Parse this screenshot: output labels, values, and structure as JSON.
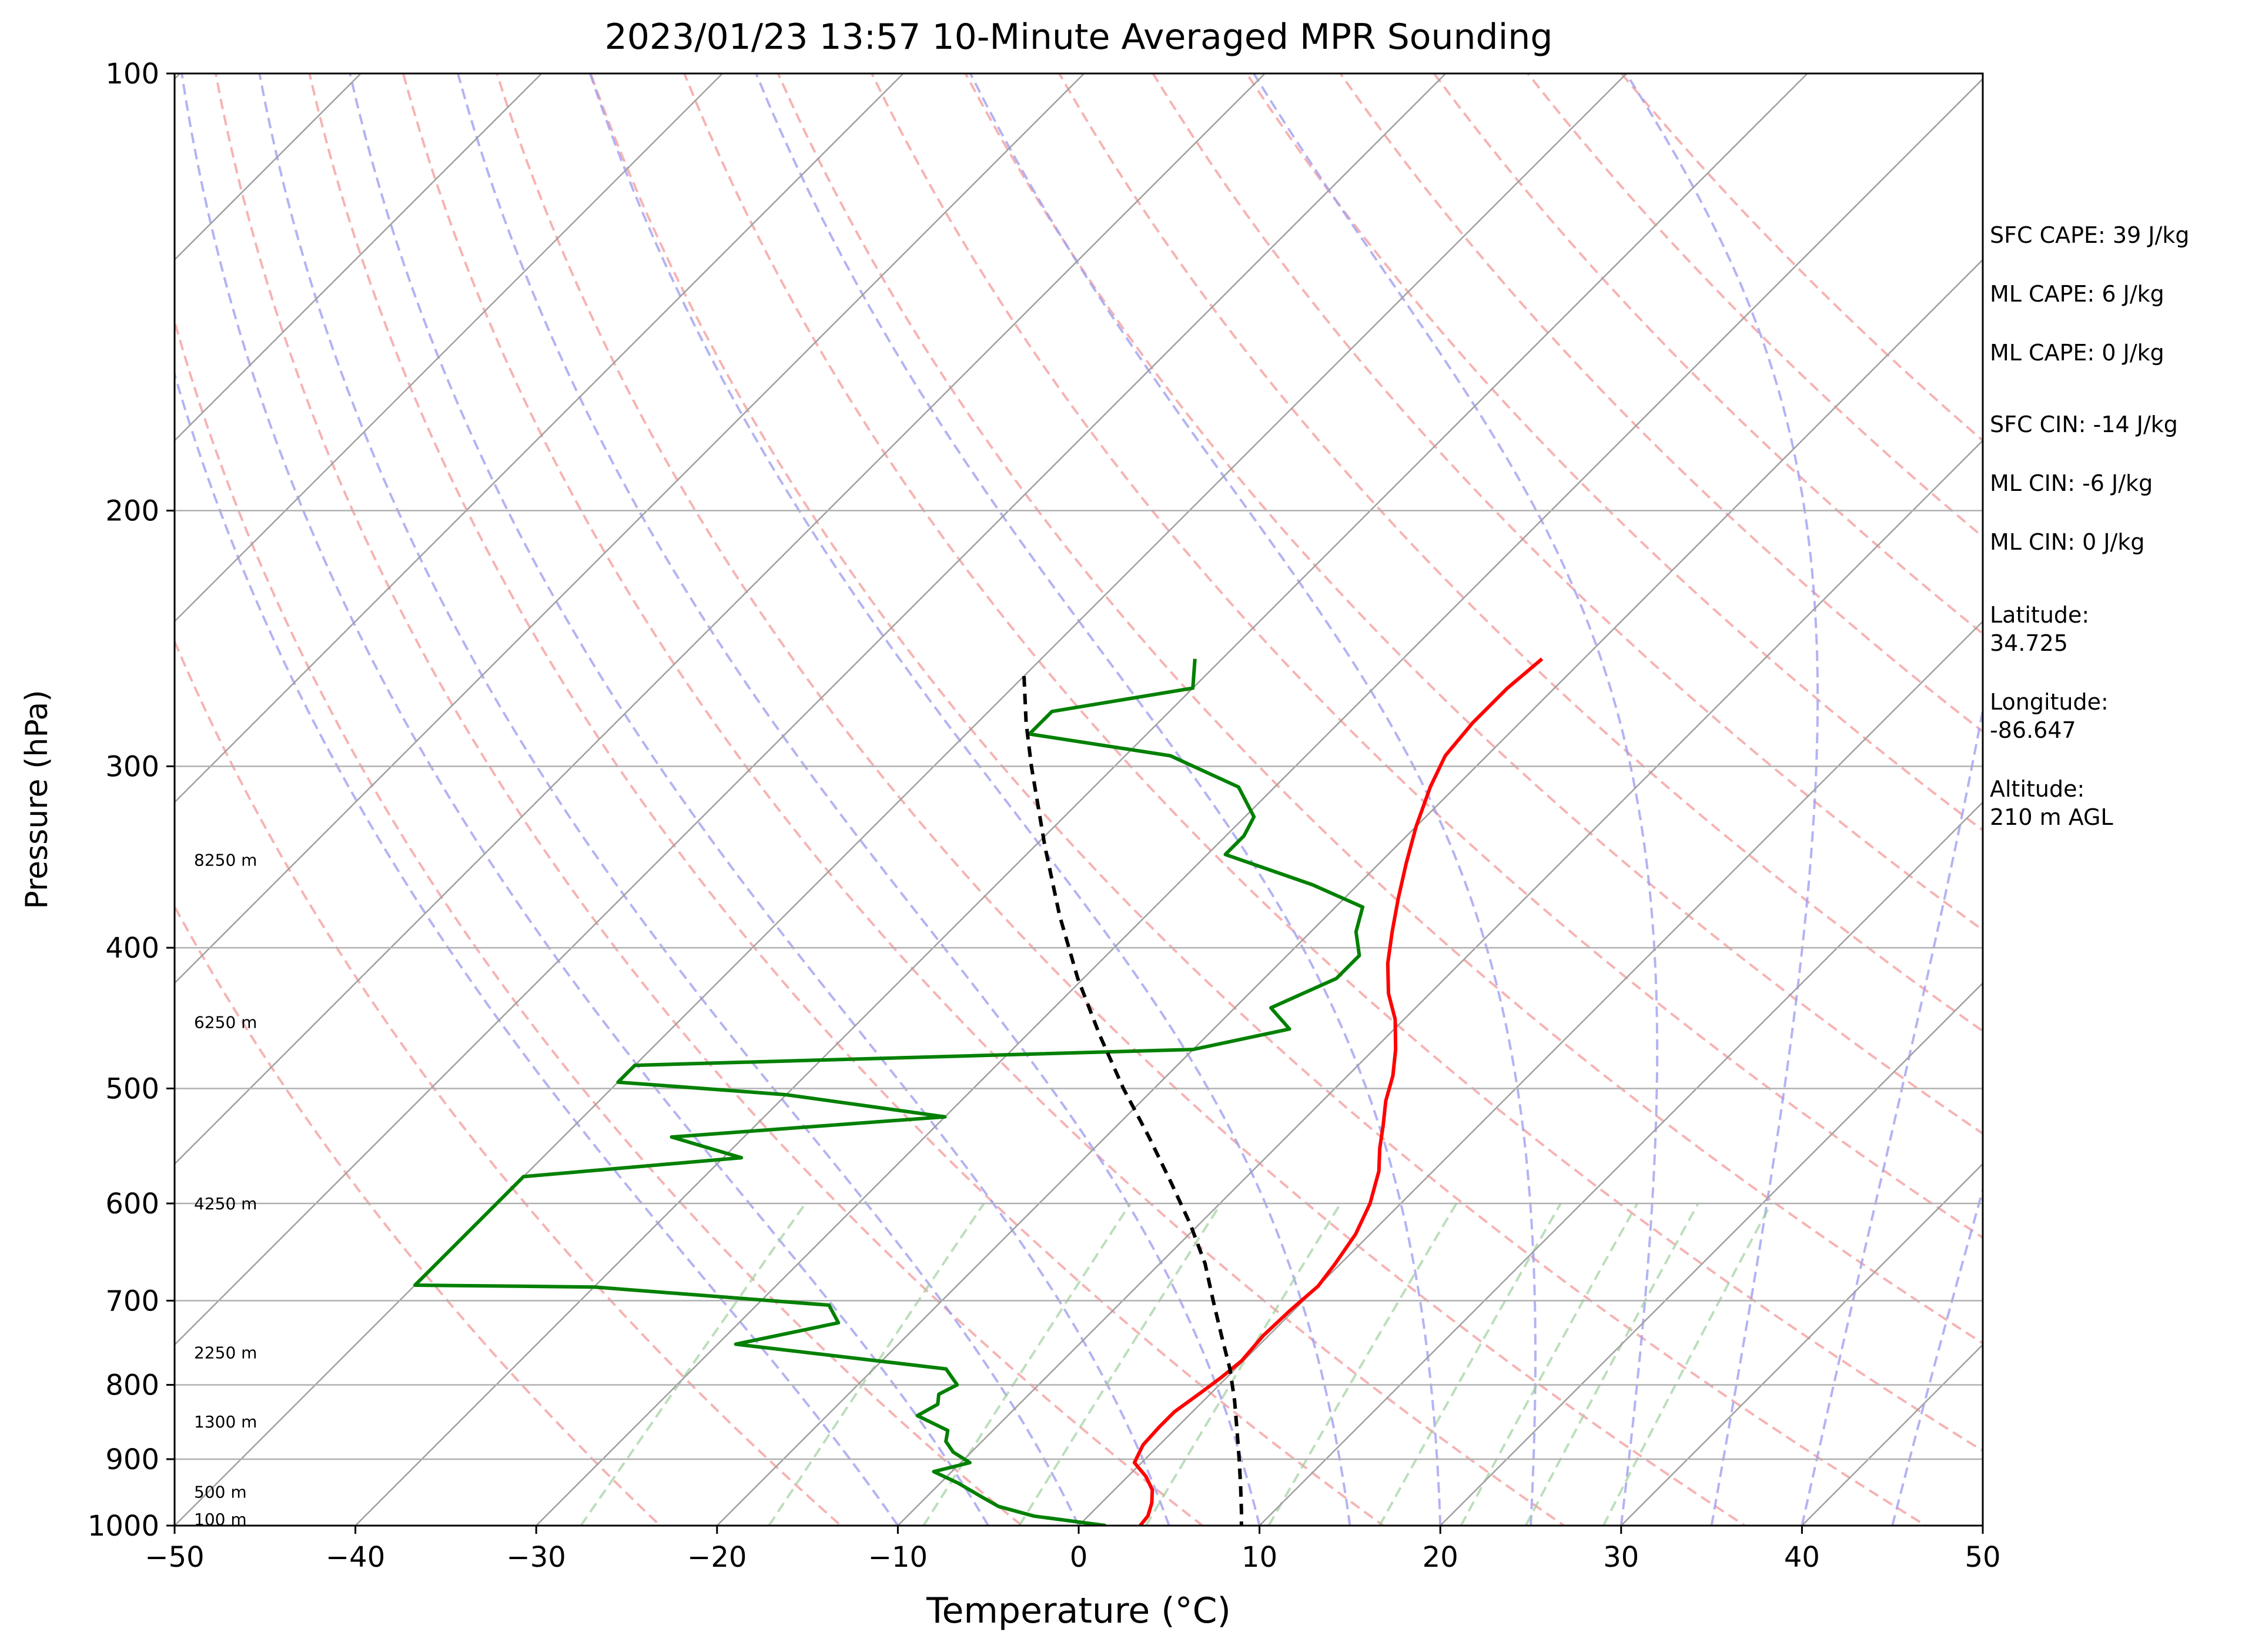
{
  "chart_data": {
    "type": "line",
    "subtype": "skew-t log-p sounding",
    "title": "2023/01/23 13:57 10-Minute Averaged MPR Sounding",
    "xlabel": "Temperature (°C)",
    "ylabel": "Pressure (hPa)",
    "xlim": [
      -50,
      50
    ],
    "ylim": [
      1000,
      100
    ],
    "y_scale": "log",
    "x_ticks": [
      -50,
      -40,
      -30,
      -20,
      -10,
      0,
      10,
      20,
      30,
      40,
      50
    ],
    "x_tick_labels": [
      "−50",
      "−40",
      "−30",
      "−20",
      "−10",
      "0",
      "10",
      "20",
      "30",
      "40",
      "50"
    ],
    "y_ticks": [
      1000,
      900,
      800,
      700,
      600,
      500,
      400,
      300,
      200,
      100
    ],
    "y_tick_labels": [
      "1000",
      "900",
      "800",
      "700",
      "600",
      "500",
      "400",
      "300",
      "200",
      "100"
    ],
    "grid": true,
    "background_lines": {
      "isotherms": {
        "color": "#a0a0a0",
        "values": [
          -130,
          -120,
          -110,
          -100,
          -90,
          -80,
          -70,
          -60,
          -50,
          -40,
          -30,
          -20,
          -10,
          0,
          10,
          20,
          30,
          40,
          50
        ]
      },
      "dry_adiabats": {
        "color": "#f4a0a0",
        "theta_K": [
          250,
          260,
          270,
          280,
          290,
          300,
          310,
          320,
          330,
          340,
          350,
          360,
          370,
          380,
          390,
          400,
          410,
          420,
          430
        ]
      },
      "moist_adiabats": {
        "color": "#a0a0f0",
        "start_temps_C": [
          -10,
          -5,
          0,
          5,
          10,
          15,
          20,
          25,
          30,
          35,
          40,
          45
        ]
      },
      "mixing_ratio_lines": {
        "color": "#a0d0a0",
        "g_per_kg": [
          0.4,
          1,
          2,
          3,
          5,
          8,
          12,
          16,
          20,
          26
        ]
      }
    },
    "series": [
      {
        "color": "#ff0000",
        "points": [
          [
            253,
            -22.3
          ],
          [
            265,
            -22.6
          ],
          [
            280,
            -22.6
          ],
          [
            295,
            -22.3
          ],
          [
            310,
            -21.4
          ],
          [
            330,
            -20.0
          ],
          [
            350,
            -18.5
          ],
          [
            370,
            -17.0
          ],
          [
            390,
            -15.5
          ],
          [
            410,
            -14.0
          ],
          [
            430,
            -12.3
          ],
          [
            448,
            -10.5
          ],
          [
            470,
            -8.8
          ],
          [
            490,
            -7.5
          ],
          [
            510,
            -6.5
          ],
          [
            530,
            -5.3
          ],
          [
            550,
            -4.2
          ],
          [
            570,
            -3.0
          ],
          [
            600,
            -1.7
          ],
          [
            630,
            -0.8
          ],
          [
            660,
            -0.3
          ],
          [
            684,
            0.0
          ],
          [
            710,
            -0.2
          ],
          [
            740,
            -0.3
          ],
          [
            770,
            -0.1
          ],
          [
            790,
            -0.3
          ],
          [
            810,
            -0.6
          ],
          [
            835,
            -1.0
          ],
          [
            855,
            -1.0
          ],
          [
            880,
            -0.9
          ],
          [
            905,
            -0.4
          ],
          [
            925,
            1.0
          ],
          [
            945,
            2.1
          ],
          [
            965,
            2.8
          ],
          [
            985,
            3.3
          ],
          [
            1000,
            3.4
          ]
        ]
      },
      {
        "color": "#008000",
        "points": [
          [
            253,
            -41.5
          ],
          [
            265,
            -40.0
          ],
          [
            275,
            -46.5
          ],
          [
            285,
            -46.5
          ],
          [
            295,
            -37.5
          ],
          [
            310,
            -32.0
          ],
          [
            325,
            -29.5
          ],
          [
            335,
            -29.0
          ],
          [
            345,
            -29.0
          ],
          [
            362,
            -22.5
          ],
          [
            375,
            -18.5
          ],
          [
            390,
            -17.5
          ],
          [
            405,
            -16.0
          ],
          [
            420,
            -16.0
          ],
          [
            440,
            -18.0
          ],
          [
            455,
            -15.8
          ],
          [
            470,
            -20.0
          ],
          [
            482,
            -50.0
          ],
          [
            495,
            -50.0
          ],
          [
            505,
            -40.0
          ],
          [
            523,
            -30.0
          ],
          [
            540,
            -44.0
          ],
          [
            558,
            -39.0
          ],
          [
            575,
            -50.0
          ],
          [
            683,
            -50.0
          ],
          [
            685,
            -40.0
          ],
          [
            705,
            -26.0
          ],
          [
            725,
            -24.5
          ],
          [
            750,
            -29.0
          ],
          [
            780,
            -16.0
          ],
          [
            800,
            -14.5
          ],
          [
            812,
            -15.0
          ],
          [
            825,
            -14.5
          ],
          [
            840,
            -15.0
          ],
          [
            860,
            -12.5
          ],
          [
            875,
            -12.0
          ],
          [
            890,
            -11.0
          ],
          [
            905,
            -9.5
          ],
          [
            918,
            -11.0
          ],
          [
            935,
            -9.0
          ],
          [
            955,
            -7.0
          ],
          [
            970,
            -5.5
          ],
          [
            985,
            -3.0
          ],
          [
            1000,
            1.5
          ]
        ]
      },
      {
        "color": "#000000",
        "style": "dashed",
        "points": [
          [
            260,
            -50.0
          ],
          [
            280,
            -47.3
          ],
          [
            300,
            -44.6
          ],
          [
            340,
            -39.5
          ],
          [
            380,
            -34.8
          ],
          [
            420,
            -30.3
          ],
          [
            460,
            -25.9
          ],
          [
            500,
            -21.7
          ],
          [
            540,
            -17.6
          ],
          [
            580,
            -13.9
          ],
          [
            620,
            -10.5
          ],
          [
            660,
            -7.5
          ],
          [
            700,
            -5.0
          ],
          [
            740,
            -2.6
          ],
          [
            780,
            -0.3
          ],
          [
            820,
            1.7
          ],
          [
            860,
            3.5
          ],
          [
            900,
            5.2
          ],
          [
            940,
            6.8
          ],
          [
            980,
            8.3
          ],
          [
            1000,
            9.0
          ]
        ]
      }
    ],
    "height_annotations": [
      {
        "p": 348,
        "label": "8250 m"
      },
      {
        "p": 450,
        "label": "6250 m"
      },
      {
        "p": 600,
        "label": "4250 m"
      },
      {
        "p": 760,
        "label": "2250 m"
      },
      {
        "p": 848,
        "label": "1300 m"
      },
      {
        "p": 948,
        "label": "500 m"
      },
      {
        "p": 990,
        "label": "100 m"
      }
    ]
  },
  "side_panel": {
    "sfc_cape": "SFC CAPE: 39 J/kg",
    "ml_cape_1": "ML CAPE: 6 J/kg",
    "ml_cape_2": "ML CAPE: 0 J/kg",
    "sfc_cin": "SFC CIN: -14 J/kg",
    "ml_cin_1": "ML CIN: -6 J/kg",
    "ml_cin_2": "ML CIN: 0 J/kg",
    "latitude_label": "Latitude:",
    "latitude_value": "34.725",
    "longitude_label": "Longitude:",
    "longitude_value": "-86.647",
    "altitude_label": "Altitude:",
    "altitude_value": "210 m AGL"
  }
}
